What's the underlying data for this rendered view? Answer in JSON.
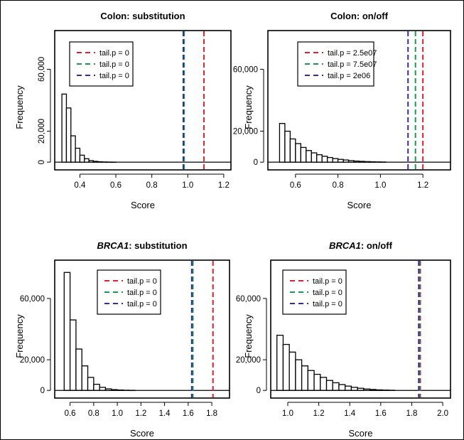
{
  "chart_data": [
    {
      "type": "bar",
      "title_prefix": "",
      "title": "Colon: substitution",
      "xlabel": "Score",
      "ylabel": "Frequency",
      "xlim": [
        0.26,
        1.24
      ],
      "ylim": [
        -5000,
        85000
      ],
      "xticks": [
        0.4,
        0.6,
        0.8,
        1.0,
        1.2
      ],
      "xtick_labels": [
        "0.4",
        "0.6",
        "0.8",
        "1.0",
        "1.2"
      ],
      "yticks": [
        0,
        20000,
        60000
      ],
      "ytick_labels": [
        "0",
        "20,000",
        "60,000"
      ],
      "ytick_rotated": true,
      "bin_width": 0.025,
      "bins": [
        {
          "x0": 0.3,
          "count": 44000
        },
        {
          "x0": 0.325,
          "count": 35000
        },
        {
          "x0": 0.35,
          "count": 17000
        },
        {
          "x0": 0.375,
          "count": 9000
        },
        {
          "x0": 0.4,
          "count": 4500
        },
        {
          "x0": 0.425,
          "count": 2200
        },
        {
          "x0": 0.45,
          "count": 1000
        },
        {
          "x0": 0.475,
          "count": 500
        },
        {
          "x0": 0.5,
          "count": 250
        },
        {
          "x0": 0.525,
          "count": 120
        },
        {
          "x0": 0.55,
          "count": 60
        },
        {
          "x0": 0.575,
          "count": 30
        }
      ],
      "vlines": [
        {
          "x": 1.09,
          "color": "#e0202e"
        },
        {
          "x": 0.98,
          "color": "#1a9a50"
        },
        {
          "x": 0.975,
          "color": "#3a2a9a"
        }
      ],
      "legend": [
        {
          "label": "tail.p = 0",
          "color": "#e0202e"
        },
        {
          "label": "tail.p = 0",
          "color": "#1a9a50"
        },
        {
          "label": "tail.p = 0",
          "color": "#3a2a9a"
        }
      ],
      "legend_position": "top-left"
    },
    {
      "type": "bar",
      "title_prefix": "",
      "title": "Colon: on/off",
      "xlabel": "Score",
      "ylabel": "Frequency",
      "xlim": [
        0.47,
        1.33
      ],
      "ylim": [
        -5000,
        85000
      ],
      "xticks": [
        0.6,
        0.8,
        1.0,
        1.2
      ],
      "xtick_labels": [
        "0.6",
        "0.8",
        "1.0",
        "1.2"
      ],
      "yticks": [
        0,
        20000,
        60000
      ],
      "ytick_labels": [
        "0",
        "20,000",
        "60,000"
      ],
      "ytick_rotated": false,
      "bin_width": 0.025,
      "bins": [
        {
          "x0": 0.525,
          "count": 25000
        },
        {
          "x0": 0.55,
          "count": 20000
        },
        {
          "x0": 0.575,
          "count": 15000
        },
        {
          "x0": 0.6,
          "count": 12000
        },
        {
          "x0": 0.625,
          "count": 9500
        },
        {
          "x0": 0.65,
          "count": 7500
        },
        {
          "x0": 0.675,
          "count": 6000
        },
        {
          "x0": 0.7,
          "count": 4800
        },
        {
          "x0": 0.725,
          "count": 3800
        },
        {
          "x0": 0.75,
          "count": 3000
        },
        {
          "x0": 0.775,
          "count": 2300
        },
        {
          "x0": 0.8,
          "count": 1800
        },
        {
          "x0": 0.825,
          "count": 1400
        },
        {
          "x0": 0.85,
          "count": 1000
        },
        {
          "x0": 0.875,
          "count": 700
        },
        {
          "x0": 0.9,
          "count": 500
        },
        {
          "x0": 0.925,
          "count": 350
        },
        {
          "x0": 0.95,
          "count": 250
        },
        {
          "x0": 0.975,
          "count": 150
        },
        {
          "x0": 1.0,
          "count": 100
        }
      ],
      "vlines": [
        {
          "x": 1.2,
          "color": "#e0202e"
        },
        {
          "x": 1.165,
          "color": "#1a9a50"
        },
        {
          "x": 1.13,
          "color": "#3a2a9a"
        }
      ],
      "legend": [
        {
          "label": "tail.p = 2.5e07",
          "color": "#e0202e"
        },
        {
          "label": "tail.p = 7.5e07",
          "color": "#1a9a50"
        },
        {
          "label": "tail.p = 2e06",
          "color": "#3a2a9a"
        }
      ],
      "legend_position": "top-left"
    },
    {
      "type": "bar",
      "title_prefix": "BRCA1",
      "title": ": substitution",
      "xlabel": "Score",
      "ylabel": "Frequency",
      "xlim": [
        0.47,
        1.95
      ],
      "ylim": [
        -5000,
        85000
      ],
      "xticks": [
        0.6,
        0.8,
        1.0,
        1.2,
        1.4,
        1.6,
        1.8
      ],
      "xtick_labels": [
        "0.6",
        "0.8",
        "1.0",
        "1.2",
        "1.4",
        "1.6",
        "1.8"
      ],
      "yticks": [
        0,
        20000,
        60000
      ],
      "ytick_labels": [
        "0",
        "20,000",
        "60,000"
      ],
      "ytick_rotated": false,
      "bin_width": 0.05,
      "bins": [
        {
          "x0": 0.55,
          "count": 77000
        },
        {
          "x0": 0.6,
          "count": 46000
        },
        {
          "x0": 0.65,
          "count": 27000
        },
        {
          "x0": 0.7,
          "count": 16000
        },
        {
          "x0": 0.75,
          "count": 8500
        },
        {
          "x0": 0.8,
          "count": 4000
        },
        {
          "x0": 0.85,
          "count": 2000
        },
        {
          "x0": 0.9,
          "count": 1000
        },
        {
          "x0": 0.95,
          "count": 500
        },
        {
          "x0": 1.0,
          "count": 250
        },
        {
          "x0": 1.05,
          "count": 120
        },
        {
          "x0": 1.1,
          "count": 60
        }
      ],
      "vlines": [
        {
          "x": 1.81,
          "color": "#e0202e"
        },
        {
          "x": 1.64,
          "color": "#1a9a50"
        },
        {
          "x": 1.63,
          "color": "#3a2a9a"
        }
      ],
      "legend": [
        {
          "label": "tail.p = 0",
          "color": "#e0202e"
        },
        {
          "label": "tail.p = 0",
          "color": "#1a9a50"
        },
        {
          "label": "tail.p = 0",
          "color": "#3a2a9a"
        }
      ],
      "legend_position": "top-center"
    },
    {
      "type": "bar",
      "title_prefix": "BRCA1",
      "title": ": on/off",
      "xlabel": "Score",
      "ylabel": "Frequency",
      "xlim": [
        0.89,
        2.05
      ],
      "ylim": [
        -5000,
        85000
      ],
      "xticks": [
        1.0,
        1.2,
        1.4,
        1.6,
        1.8,
        2.0
      ],
      "xtick_labels": [
        "1.0",
        "1.2",
        "1.4",
        "1.6",
        "1.8",
        "2.0"
      ],
      "yticks": [
        0,
        20000,
        60000
      ],
      "ytick_labels": [
        "0",
        "20,000",
        "60,000"
      ],
      "ytick_rotated": false,
      "bin_width": 0.04,
      "bins": [
        {
          "x0": 0.93,
          "count": 36000
        },
        {
          "x0": 0.97,
          "count": 30000
        },
        {
          "x0": 1.01,
          "count": 25000
        },
        {
          "x0": 1.05,
          "count": 20000
        },
        {
          "x0": 1.09,
          "count": 16000
        },
        {
          "x0": 1.13,
          "count": 13000
        },
        {
          "x0": 1.17,
          "count": 10500
        },
        {
          "x0": 1.21,
          "count": 8500
        },
        {
          "x0": 1.25,
          "count": 6500
        },
        {
          "x0": 1.29,
          "count": 5000
        },
        {
          "x0": 1.33,
          "count": 3800
        },
        {
          "x0": 1.37,
          "count": 2800
        },
        {
          "x0": 1.41,
          "count": 2000
        },
        {
          "x0": 1.45,
          "count": 1400
        },
        {
          "x0": 1.49,
          "count": 900
        },
        {
          "x0": 1.53,
          "count": 600
        },
        {
          "x0": 1.57,
          "count": 350
        },
        {
          "x0": 1.61,
          "count": 200
        },
        {
          "x0": 1.65,
          "count": 100
        }
      ],
      "vlines": [
        {
          "x": 1.855,
          "color": "#e0202e"
        },
        {
          "x": 1.85,
          "color": "#1a9a50"
        },
        {
          "x": 1.845,
          "color": "#3a2a9a"
        }
      ],
      "legend": [
        {
          "label": "tail.p = 0",
          "color": "#e0202e"
        },
        {
          "label": "tail.p = 0",
          "color": "#1a9a50"
        },
        {
          "label": "tail.p = 0",
          "color": "#3a2a9a"
        }
      ],
      "legend_position": "top-left"
    }
  ]
}
